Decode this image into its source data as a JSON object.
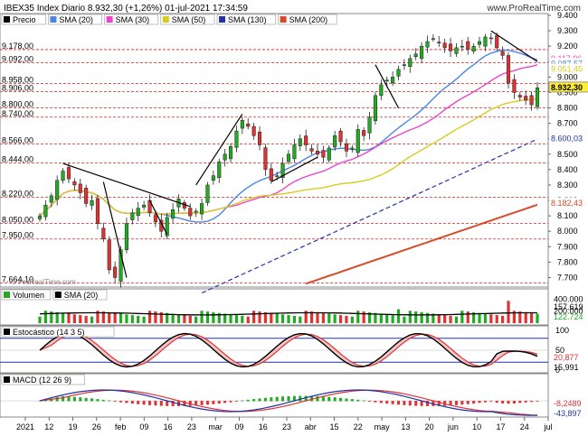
{
  "header": {
    "title": "IBEX35 Index Diario 8.932,30 (+1,26%) 01-jul-2021 17:34:59",
    "watermark": "www.ProRealTime.com",
    "watermark_small": "© ProRealTime.com"
  },
  "legend_main": [
    {
      "label": "Precio",
      "color": "#000000"
    },
    {
      "label": "SMA (20)",
      "color": "#4a86e8"
    },
    {
      "label": "SMA (30)",
      "color": "#ee44cc"
    },
    {
      "label": "SMA (50)",
      "color": "#d8cc22"
    },
    {
      "label": "SMA (130)",
      "color": "#2233aa"
    },
    {
      "label": "SMA (200)",
      "color": "#d84a2a"
    }
  ],
  "legend_volume": [
    {
      "label": "Volumen",
      "color": "#22aa22"
    },
    {
      "label": "SMA (20)",
      "color": "#000000"
    }
  ],
  "legend_stoch": [
    {
      "label": "Estocástico (14 3 5)",
      "color": "#000000"
    }
  ],
  "legend_macd": [
    {
      "label": "MACD (12 26 9)",
      "color": "#000000"
    }
  ],
  "chart_data": [
    {
      "type": "candlestick",
      "title": "IBEX35 Index Diario",
      "ylim": [
        7650,
        9400
      ],
      "right_ticks": [
        "9.400",
        "9.300",
        "9.200",
        "9.100",
        "9.000",
        "8.900",
        "8.800",
        "8.700",
        "8.600",
        "8.500",
        "8.400",
        "8.300",
        "8.200",
        "8.100",
        "8.000",
        "7.900",
        "7.800",
        "7.700"
      ],
      "left_levels": [
        "9.178,00",
        "9.092,00",
        "8.958,00",
        "8.906,00",
        "8.800,00",
        "8.740,00",
        "8.566,00",
        "8.444,00",
        "8.220,00",
        "8.050,00",
        "7.950,00",
        "7.664,10"
      ],
      "badges": [
        {
          "value": "9.117,96",
          "color": "#ee44cc"
        },
        {
          "value": "9.087,57",
          "color": "#4a86e8"
        },
        {
          "value": "9.051,45",
          "color": "#d8cc22"
        },
        {
          "value": "8.932,30",
          "color": "#000000",
          "fill": "#ffee33"
        },
        {
          "value": "8.600,03",
          "color": "#2233aa"
        },
        {
          "value": "8.182,43",
          "color": "#d84a2a"
        }
      ],
      "x_labels": [
        "2021",
        "12",
        "19",
        "26",
        "feb",
        "09",
        "16",
        "23",
        "mar",
        "09",
        "16",
        "23",
        "abr",
        "15",
        "22",
        "may",
        "13",
        "20",
        "jun",
        "10",
        "17",
        "24",
        "jul"
      ],
      "closes": [
        8100,
        8170,
        8230,
        8330,
        8390,
        8340,
        8300,
        8250,
        8180,
        8200,
        8050,
        7950,
        7750,
        7700,
        7880,
        8050,
        8120,
        8150,
        8170,
        8120,
        8060,
        8000,
        8090,
        8140,
        8210,
        8150,
        8100,
        8130,
        8180,
        8300,
        8360,
        8450,
        8500,
        8550,
        8650,
        8720,
        8680,
        8620,
        8560,
        8400,
        8330,
        8360,
        8440,
        8500,
        8560,
        8600,
        8560,
        8520,
        8500,
        8480,
        8540,
        8620,
        8580,
        8520,
        8540,
        8660,
        8620,
        8740,
        8880,
        8950,
        8980,
        9000,
        9050,
        9080,
        9120,
        9150,
        9200,
        9230,
        9250,
        9220,
        9190,
        9170,
        9190,
        9200,
        9180,
        9200,
        9230,
        9260,
        9250,
        9190,
        9140,
        8960,
        8900,
        8870,
        8850,
        8820,
        8930
      ]
    },
    {
      "type": "bar",
      "title": "Volumen",
      "right_ticks": [
        "400.000",
        "200.000"
      ],
      "badges": [
        {
          "value": "157.619",
          "color": "#000000"
        },
        {
          "value": "122.724",
          "color": "#22aa22"
        }
      ]
    },
    {
      "type": "line",
      "title": "Estocástico (14 3 5)",
      "right_ticks": [
        "100",
        "50",
        "0"
      ],
      "badges": [
        {
          "value": "20,877",
          "color": "#dd3333"
        },
        {
          "value": "15,991",
          "color": "#000000"
        }
      ]
    },
    {
      "type": "bar",
      "title": "MACD (12 26 9)",
      "badges": [
        {
          "value": "-8,2489",
          "color": "#dd3333"
        },
        {
          "value": "-43,897",
          "color": "#2233aa"
        }
      ]
    }
  ]
}
